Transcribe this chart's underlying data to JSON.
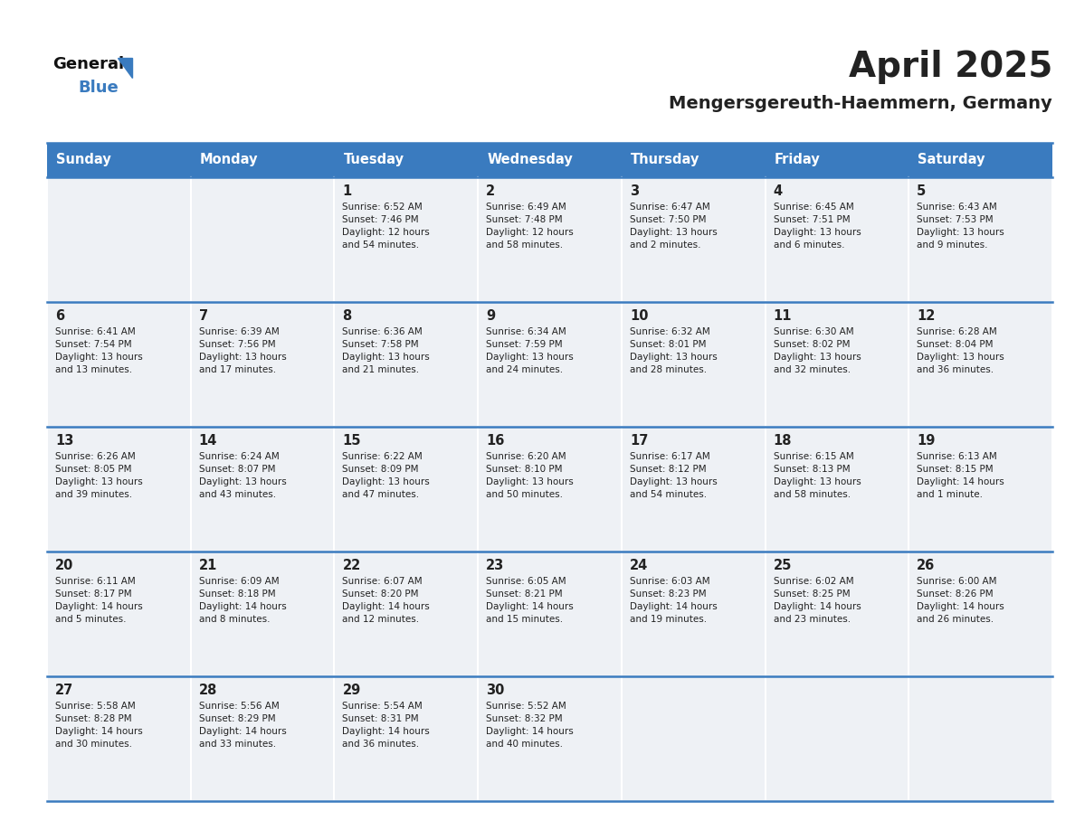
{
  "title": "April 2025",
  "subtitle": "Mengersgereuth-Haemmern, Germany",
  "header_color": "#3a7bbf",
  "header_text_color": "#ffffff",
  "cell_bg_color": "#eef1f5",
  "border_color": "#3a7bbf",
  "text_color": "#222222",
  "days_of_week": [
    "Sunday",
    "Monday",
    "Tuesday",
    "Wednesday",
    "Thursday",
    "Friday",
    "Saturday"
  ],
  "weeks": [
    [
      {
        "day": "",
        "info": ""
      },
      {
        "day": "",
        "info": ""
      },
      {
        "day": "1",
        "info": "Sunrise: 6:52 AM\nSunset: 7:46 PM\nDaylight: 12 hours\nand 54 minutes."
      },
      {
        "day": "2",
        "info": "Sunrise: 6:49 AM\nSunset: 7:48 PM\nDaylight: 12 hours\nand 58 minutes."
      },
      {
        "day": "3",
        "info": "Sunrise: 6:47 AM\nSunset: 7:50 PM\nDaylight: 13 hours\nand 2 minutes."
      },
      {
        "day": "4",
        "info": "Sunrise: 6:45 AM\nSunset: 7:51 PM\nDaylight: 13 hours\nand 6 minutes."
      },
      {
        "day": "5",
        "info": "Sunrise: 6:43 AM\nSunset: 7:53 PM\nDaylight: 13 hours\nand 9 minutes."
      }
    ],
    [
      {
        "day": "6",
        "info": "Sunrise: 6:41 AM\nSunset: 7:54 PM\nDaylight: 13 hours\nand 13 minutes."
      },
      {
        "day": "7",
        "info": "Sunrise: 6:39 AM\nSunset: 7:56 PM\nDaylight: 13 hours\nand 17 minutes."
      },
      {
        "day": "8",
        "info": "Sunrise: 6:36 AM\nSunset: 7:58 PM\nDaylight: 13 hours\nand 21 minutes."
      },
      {
        "day": "9",
        "info": "Sunrise: 6:34 AM\nSunset: 7:59 PM\nDaylight: 13 hours\nand 24 minutes."
      },
      {
        "day": "10",
        "info": "Sunrise: 6:32 AM\nSunset: 8:01 PM\nDaylight: 13 hours\nand 28 minutes."
      },
      {
        "day": "11",
        "info": "Sunrise: 6:30 AM\nSunset: 8:02 PM\nDaylight: 13 hours\nand 32 minutes."
      },
      {
        "day": "12",
        "info": "Sunrise: 6:28 AM\nSunset: 8:04 PM\nDaylight: 13 hours\nand 36 minutes."
      }
    ],
    [
      {
        "day": "13",
        "info": "Sunrise: 6:26 AM\nSunset: 8:05 PM\nDaylight: 13 hours\nand 39 minutes."
      },
      {
        "day": "14",
        "info": "Sunrise: 6:24 AM\nSunset: 8:07 PM\nDaylight: 13 hours\nand 43 minutes."
      },
      {
        "day": "15",
        "info": "Sunrise: 6:22 AM\nSunset: 8:09 PM\nDaylight: 13 hours\nand 47 minutes."
      },
      {
        "day": "16",
        "info": "Sunrise: 6:20 AM\nSunset: 8:10 PM\nDaylight: 13 hours\nand 50 minutes."
      },
      {
        "day": "17",
        "info": "Sunrise: 6:17 AM\nSunset: 8:12 PM\nDaylight: 13 hours\nand 54 minutes."
      },
      {
        "day": "18",
        "info": "Sunrise: 6:15 AM\nSunset: 8:13 PM\nDaylight: 13 hours\nand 58 minutes."
      },
      {
        "day": "19",
        "info": "Sunrise: 6:13 AM\nSunset: 8:15 PM\nDaylight: 14 hours\nand 1 minute."
      }
    ],
    [
      {
        "day": "20",
        "info": "Sunrise: 6:11 AM\nSunset: 8:17 PM\nDaylight: 14 hours\nand 5 minutes."
      },
      {
        "day": "21",
        "info": "Sunrise: 6:09 AM\nSunset: 8:18 PM\nDaylight: 14 hours\nand 8 minutes."
      },
      {
        "day": "22",
        "info": "Sunrise: 6:07 AM\nSunset: 8:20 PM\nDaylight: 14 hours\nand 12 minutes."
      },
      {
        "day": "23",
        "info": "Sunrise: 6:05 AM\nSunset: 8:21 PM\nDaylight: 14 hours\nand 15 minutes."
      },
      {
        "day": "24",
        "info": "Sunrise: 6:03 AM\nSunset: 8:23 PM\nDaylight: 14 hours\nand 19 minutes."
      },
      {
        "day": "25",
        "info": "Sunrise: 6:02 AM\nSunset: 8:25 PM\nDaylight: 14 hours\nand 23 minutes."
      },
      {
        "day": "26",
        "info": "Sunrise: 6:00 AM\nSunset: 8:26 PM\nDaylight: 14 hours\nand 26 minutes."
      }
    ],
    [
      {
        "day": "27",
        "info": "Sunrise: 5:58 AM\nSunset: 8:28 PM\nDaylight: 14 hours\nand 30 minutes."
      },
      {
        "day": "28",
        "info": "Sunrise: 5:56 AM\nSunset: 8:29 PM\nDaylight: 14 hours\nand 33 minutes."
      },
      {
        "day": "29",
        "info": "Sunrise: 5:54 AM\nSunset: 8:31 PM\nDaylight: 14 hours\nand 36 minutes."
      },
      {
        "day": "30",
        "info": "Sunrise: 5:52 AM\nSunset: 8:32 PM\nDaylight: 14 hours\nand 40 minutes."
      },
      {
        "day": "",
        "info": ""
      },
      {
        "day": "",
        "info": ""
      },
      {
        "day": "",
        "info": ""
      }
    ]
  ],
  "title_fontsize": 28,
  "subtitle_fontsize": 14,
  "header_fontsize": 10.5,
  "day_num_fontsize": 10.5,
  "info_fontsize": 7.5,
  "logo_general_fontsize": 13,
  "logo_blue_fontsize": 13
}
